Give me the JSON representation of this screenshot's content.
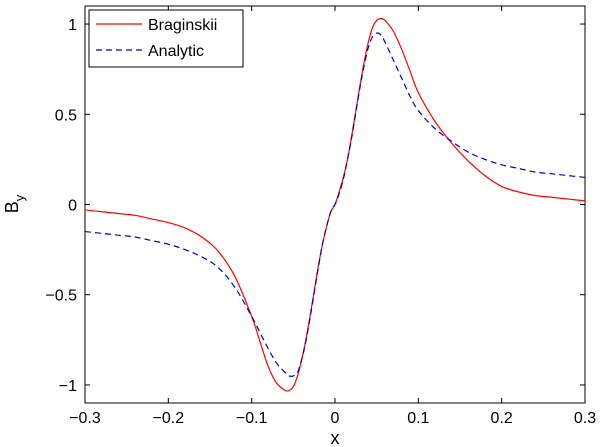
{
  "chart_data": {
    "type": "line",
    "title": "",
    "xlabel": "x",
    "ylabel": "B",
    "ylabel_subscript": "y",
    "xlim": [
      -0.3,
      0.3
    ],
    "ylim": [
      -1.1,
      1.1
    ],
    "xticks": [
      -0.3,
      -0.2,
      -0.1,
      0,
      0.1,
      0.2,
      0.3
    ],
    "xtick_labels": [
      "−0.3",
      "−0.2",
      "−0.1",
      "0",
      "0.1",
      "0.2",
      "0.3"
    ],
    "yticks": [
      -1,
      -0.5,
      0,
      0.5,
      1
    ],
    "ytick_labels": [
      "−1",
      "−0.5",
      "0",
      "0.5",
      "1"
    ],
    "grid": false,
    "legend_position": "top-left",
    "series": [
      {
        "name": "Braginskii",
        "color": "#ff0000",
        "style": "solid",
        "x": [
          -0.3,
          -0.28,
          -0.26,
          -0.24,
          -0.22,
          -0.2,
          -0.18,
          -0.16,
          -0.14,
          -0.12,
          -0.1,
          -0.09,
          -0.08,
          -0.07,
          -0.06,
          -0.055,
          -0.05,
          -0.045,
          -0.04,
          -0.035,
          -0.03,
          -0.025,
          -0.02,
          -0.015,
          -0.01,
          -0.005,
          0,
          0.005,
          0.01,
          0.015,
          0.02,
          0.025,
          0.03,
          0.035,
          0.04,
          0.045,
          0.05,
          0.055,
          0.06,
          0.07,
          0.08,
          0.09,
          0.1,
          0.12,
          0.14,
          0.16,
          0.18,
          0.2,
          0.22,
          0.24,
          0.26,
          0.28,
          0.3
        ],
        "y": [
          -0.03,
          -0.04,
          -0.05,
          -0.06,
          -0.08,
          -0.1,
          -0.13,
          -0.18,
          -0.26,
          -0.4,
          -0.62,
          -0.76,
          -0.9,
          -0.99,
          -1.03,
          -1.03,
          -1.01,
          -0.95,
          -0.86,
          -0.75,
          -0.62,
          -0.48,
          -0.34,
          -0.22,
          -0.12,
          -0.04,
          0.0,
          0.07,
          0.15,
          0.25,
          0.38,
          0.52,
          0.66,
          0.79,
          0.9,
          0.98,
          1.02,
          1.03,
          1.02,
          0.96,
          0.86,
          0.74,
          0.62,
          0.46,
          0.34,
          0.24,
          0.16,
          0.1,
          0.07,
          0.05,
          0.04,
          0.03,
          0.02
        ]
      },
      {
        "name": "Analytic",
        "color": "#0000cc",
        "style": "dashed",
        "x": [
          -0.3,
          -0.28,
          -0.26,
          -0.24,
          -0.22,
          -0.2,
          -0.18,
          -0.16,
          -0.14,
          -0.12,
          -0.1,
          -0.09,
          -0.08,
          -0.07,
          -0.06,
          -0.055,
          -0.05,
          -0.045,
          -0.04,
          -0.035,
          -0.03,
          -0.025,
          -0.02,
          -0.015,
          -0.01,
          -0.005,
          0,
          0.005,
          0.01,
          0.015,
          0.02,
          0.025,
          0.03,
          0.035,
          0.04,
          0.045,
          0.05,
          0.055,
          0.06,
          0.07,
          0.08,
          0.09,
          0.1,
          0.12,
          0.14,
          0.16,
          0.18,
          0.2,
          0.22,
          0.24,
          0.26,
          0.28,
          0.3
        ],
        "y": [
          -0.15,
          -0.16,
          -0.17,
          -0.18,
          -0.2,
          -0.22,
          -0.25,
          -0.29,
          -0.35,
          -0.46,
          -0.62,
          -0.71,
          -0.8,
          -0.88,
          -0.93,
          -0.95,
          -0.95,
          -0.93,
          -0.86,
          -0.76,
          -0.63,
          -0.49,
          -0.35,
          -0.22,
          -0.12,
          -0.04,
          0.0,
          0.06,
          0.14,
          0.25,
          0.37,
          0.51,
          0.65,
          0.77,
          0.87,
          0.93,
          0.95,
          0.94,
          0.9,
          0.8,
          0.7,
          0.6,
          0.52,
          0.42,
          0.35,
          0.29,
          0.25,
          0.22,
          0.2,
          0.18,
          0.17,
          0.16,
          0.15
        ]
      }
    ]
  }
}
